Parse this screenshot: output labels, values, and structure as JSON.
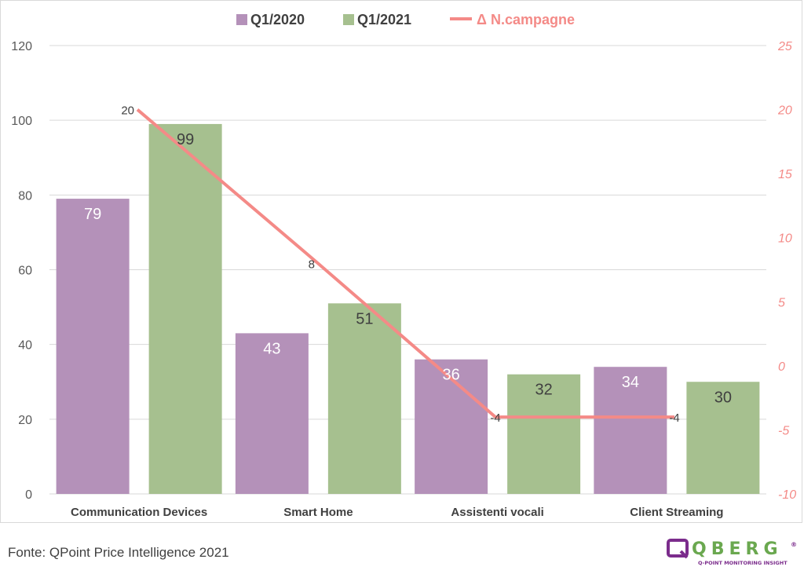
{
  "chart_data": {
    "type": "bar",
    "categories": [
      "Communication Devices",
      "Smart Home",
      "Assistenti vocali",
      "Client Streaming"
    ],
    "series": [
      {
        "name": "Q1/2020",
        "type": "bar",
        "axis": "left",
        "color": "#b491b9",
        "label_color": "#ffffff",
        "values": [
          79,
          43,
          36,
          34
        ]
      },
      {
        "name": "Q1/2021",
        "type": "bar",
        "axis": "left",
        "color": "#a6c08f",
        "label_color": "#404040",
        "values": [
          99,
          51,
          32,
          30
        ]
      },
      {
        "name": "Δ N.campagne",
        "type": "line",
        "axis": "right",
        "color": "#f48a87",
        "label_color": "#404040",
        "values": [
          20,
          8,
          -4,
          -4
        ]
      }
    ],
    "y_left": {
      "min": 0,
      "max": 120,
      "ticks": [
        "0",
        "20",
        "40",
        "60",
        "80",
        "100",
        "120"
      ]
    },
    "y_right": {
      "min": -10,
      "max": 25,
      "ticks": [
        "-10",
        "-5",
        "0",
        "5",
        "10",
        "15",
        "20",
        "25"
      ]
    },
    "grid": true,
    "legend_position": "top-center"
  },
  "footer": {
    "source": "Fonte: QPoint Price Intelligence 2021"
  },
  "logo": {
    "word": "QBERG",
    "tagline": "Q-POINT MONITORING INSIGHT",
    "mark": "®"
  }
}
